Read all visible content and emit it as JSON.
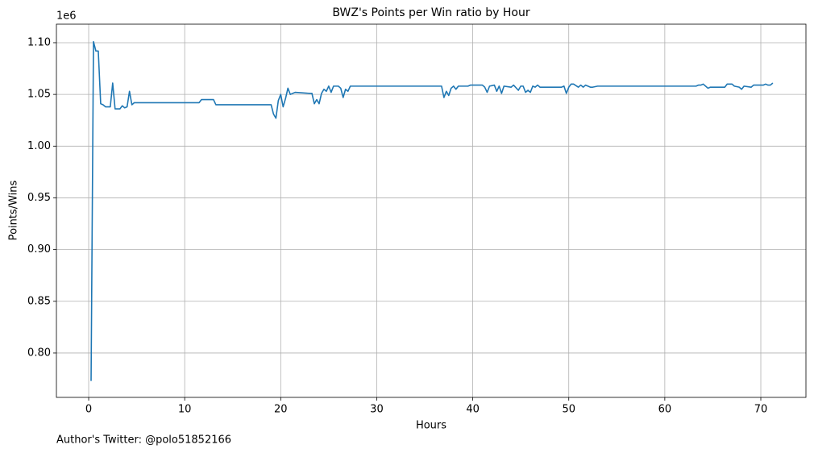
{
  "chart_data": {
    "type": "line",
    "title": "BWZ's Points per Win ratio by Hour",
    "xlabel": "Hours",
    "ylabel": "Points/Wins",
    "y_offset_label": "1e6",
    "annotation": "Author's Twitter: @polo51852166",
    "grid": true,
    "xlim": [
      -3.36,
      74.7
    ],
    "ylim": [
      0.7571,
      1.1179
    ],
    "xticks": [
      0,
      10,
      20,
      30,
      40,
      50,
      60,
      70
    ],
    "yticks": [
      {
        "value": 0.8,
        "label": "0.80"
      },
      {
        "value": 0.85,
        "label": "0.85"
      },
      {
        "value": 0.9,
        "label": "0.90"
      },
      {
        "value": 0.95,
        "label": "0.95"
      },
      {
        "value": 1.0,
        "label": "1.00"
      },
      {
        "value": 1.05,
        "label": "1.05"
      },
      {
        "value": 1.1,
        "label": "1.10"
      }
    ],
    "x": [
      0.25,
      0.5,
      0.75,
      1.0,
      1.25,
      1.5,
      1.75,
      2.0,
      2.25,
      2.5,
      2.75,
      3.0,
      3.25,
      3.5,
      3.75,
      4.0,
      4.25,
      4.5,
      4.75,
      5,
      11.5,
      11.75,
      13,
      13.25,
      19,
      19.25,
      19.5,
      19.75,
      20,
      20.25,
      20.5,
      20.75,
      21,
      21.5,
      23,
      23.25,
      23.5,
      23.75,
      24,
      24.25,
      24.5,
      24.75,
      25,
      25.25,
      25.5,
      26,
      26.25,
      26.5,
      26.75,
      27,
      27.25,
      36.75,
      37,
      37.25,
      37.5,
      37.75,
      38,
      38.25,
      38.5,
      39.5,
      39.75,
      41,
      41.25,
      41.5,
      41.75,
      42.25,
      42.5,
      42.75,
      43,
      43.25,
      44,
      44.25,
      44.75,
      45,
      45.25,
      45.5,
      45.75,
      46,
      46.25,
      46.5,
      46.75,
      47,
      49.25,
      49.5,
      49.75,
      50,
      50.25,
      50.5,
      51,
      51.25,
      51.5,
      51.75,
      52.25,
      52.5,
      53,
      63.25,
      63.5,
      63.75,
      64,
      64.25,
      64.5,
      64.75,
      66.25,
      66.5,
      67,
      67.25,
      67.75,
      68,
      68.25,
      69,
      69.25,
      70.25,
      70.5,
      70.75,
      71,
      71.25
    ],
    "series": [
      {
        "name": "Points/Wins",
        "color": "#1f77b4",
        "values": [
          0.773,
          1.101,
          1.092,
          1.092,
          1.041,
          1.04,
          1.038,
          1.038,
          1.038,
          1.061,
          1.036,
          1.036,
          1.036,
          1.039,
          1.037,
          1.038,
          1.053,
          1.04,
          1.042,
          1.042,
          1.042,
          1.045,
          1.045,
          1.04,
          1.04,
          1.031,
          1.027,
          1.044,
          1.05,
          1.038,
          1.046,
          1.056,
          1.05,
          1.052,
          1.051,
          1.051,
          1.041,
          1.045,
          1.041,
          1.051,
          1.055,
          1.053,
          1.058,
          1.052,
          1.058,
          1.058,
          1.056,
          1.047,
          1.055,
          1.053,
          1.058,
          1.058,
          1.047,
          1.053,
          1.049,
          1.056,
          1.058,
          1.055,
          1.058,
          1.058,
          1.059,
          1.059,
          1.057,
          1.052,
          1.058,
          1.059,
          1.053,
          1.058,
          1.051,
          1.058,
          1.057,
          1.059,
          1.054,
          1.058,
          1.058,
          1.052,
          1.054,
          1.052,
          1.058,
          1.057,
          1.059,
          1.057,
          1.057,
          1.058,
          1.051,
          1.057,
          1.06,
          1.06,
          1.057,
          1.059,
          1.057,
          1.059,
          1.057,
          1.057,
          1.058,
          1.058,
          1.059,
          1.059,
          1.06,
          1.058,
          1.056,
          1.057,
          1.057,
          1.06,
          1.06,
          1.058,
          1.057,
          1.055,
          1.058,
          1.057,
          1.059,
          1.059,
          1.06,
          1.059,
          1.059,
          1.061
        ]
      }
    ]
  }
}
